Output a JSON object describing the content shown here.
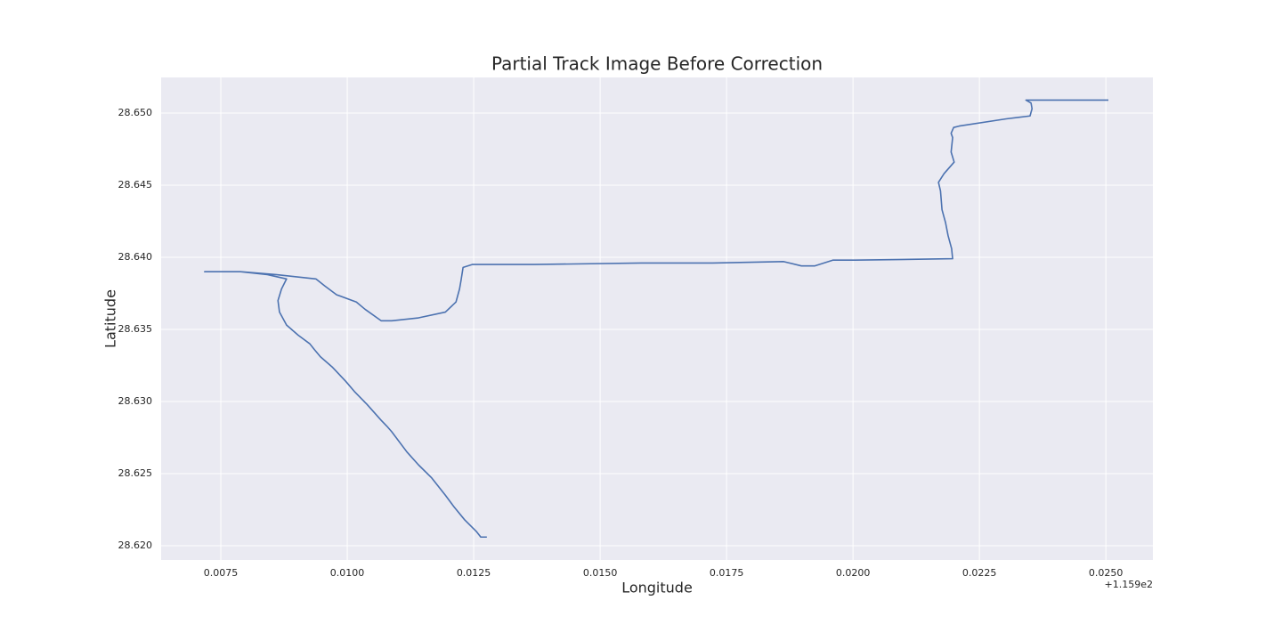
{
  "chart_data": {
    "type": "line",
    "title": "Partial Track Image Before Correction",
    "x_label": "Longitude",
    "y_label": "Latitude",
    "x_offset_label": "+1.159e2",
    "color": "#4c72b0",
    "grid": true,
    "xlim": [
      0.00632,
      0.02593
    ],
    "ylim": [
      28.61901,
      28.65247
    ],
    "xticks": [
      0.0075,
      {
        "value": 0.01,
        "label": "0.0100"
      },
      0.0125,
      {
        "value": 0.015,
        "label": "0.0150"
      },
      0.0175,
      {
        "value": 0.02,
        "label": "0.0200"
      },
      0.0225,
      {
        "value": 0.025,
        "label": "0.0250"
      }
    ],
    "yticks": [
      {
        "value": 28.62,
        "label": "28.620"
      },
      28.625,
      {
        "value": 28.63,
        "label": "28.630"
      },
      28.635,
      {
        "value": 28.64,
        "label": "28.640"
      },
      28.645,
      {
        "value": 28.65,
        "label": "28.650"
      }
    ],
    "x": [
      0.01276,
      0.01264,
      0.01255,
      0.01232,
      0.01211,
      0.01194,
      0.01167,
      0.01141,
      0.01118,
      0.01088,
      0.01078,
      0.01067,
      0.01039,
      0.01014,
      0.00997,
      0.0097,
      0.00947,
      0.00935,
      0.00926,
      0.00903,
      0.0088,
      0.00866,
      0.00863,
      0.0087,
      0.0088,
      0.00842,
      0.00789,
      0.00718,
      0.00722,
      0.00789,
      0.00859,
      0.00938,
      0.00956,
      0.00979,
      0.01018,
      0.01035,
      0.01067,
      0.01088,
      0.01141,
      0.01194,
      0.01215,
      0.01222,
      0.01225,
      0.01229,
      0.01247,
      0.0137,
      0.01581,
      0.01722,
      0.01863,
      0.01898,
      0.01924,
      0.0196,
      0.02004,
      0.02197,
      0.02195,
      0.02188,
      0.02183,
      0.02176,
      0.02173,
      0.02169,
      0.0218,
      0.022,
      0.02194,
      0.02197,
      0.02194,
      0.02199,
      0.0221,
      0.02303,
      0.0235,
      0.02354,
      0.02352,
      0.02342,
      0.02426,
      0.02444,
      0.02461,
      0.02505
    ],
    "values": [
      28.6206,
      28.6206,
      28.621,
      28.6218,
      28.6227,
      28.6235,
      28.6247,
      28.6256,
      28.6265,
      28.6279,
      28.6283,
      28.6287,
      28.6298,
      28.6307,
      28.6314,
      28.6324,
      28.6331,
      28.6336,
      28.634,
      28.6346,
      28.6353,
      28.6362,
      28.637,
      28.6378,
      28.6385,
      28.6388,
      28.639,
      28.639,
      28.639,
      28.639,
      28.6388,
      28.6385,
      28.638,
      28.6374,
      28.6369,
      28.6364,
      28.6356,
      28.6356,
      28.6358,
      28.6362,
      28.6369,
      28.6378,
      28.6384,
      28.6393,
      28.6395,
      28.6395,
      28.6396,
      28.6396,
      28.6397,
      28.6394,
      28.6394,
      28.6398,
      28.6398,
      28.6399,
      28.6406,
      28.6415,
      28.6424,
      28.6433,
      28.6446,
      28.6452,
      28.6458,
      28.6466,
      28.6473,
      28.6483,
      28.6486,
      28.649,
      28.6491,
      28.6496,
      28.6498,
      28.6503,
      28.6507,
      28.6509,
      28.6509,
      28.6509,
      28.6509,
      28.6509
    ]
  }
}
